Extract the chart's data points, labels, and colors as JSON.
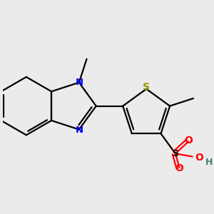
{
  "bg": "#ebebeb",
  "bc": "#000000",
  "nc": "#0000ff",
  "sc": "#999900",
  "oc": "#ff0000",
  "hc": "#408080",
  "lw": 1.6,
  "figsize": [
    3.0,
    3.0
  ],
  "dpi": 100,
  "xlim": [
    0,
    10
  ],
  "ylim": [
    0,
    10
  ]
}
